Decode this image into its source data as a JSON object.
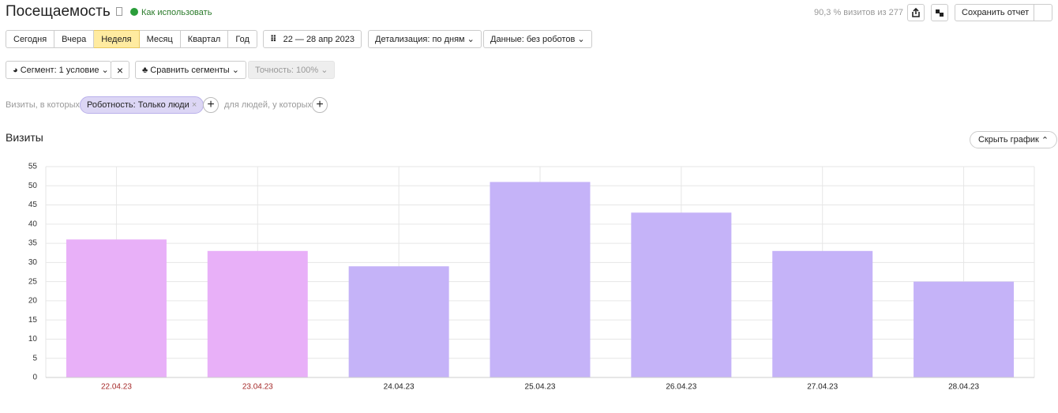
{
  "header": {
    "title": "Посещаемость",
    "help": "Как использовать",
    "sampling": "90,3 % визитов из 277",
    "save": "Сохранить отчет"
  },
  "periods": [
    "Сегодня",
    "Вчера",
    "Неделя",
    "Месяц",
    "Квартал",
    "Год"
  ],
  "date_range": "22 — 28 апр 2023",
  "detail": "Детализация: по дням",
  "data_filter": "Данные: без роботов",
  "segment": "Сегмент: 1 условие",
  "compare": "Сравнить сегменты",
  "accuracy": "Точность: 100%",
  "filter": {
    "prefix": "Визиты, в которых",
    "tag": "Роботность: Только люди",
    "people": "для людей, у которых"
  },
  "hide_chart": "Скрыть график",
  "chart_data": {
    "type": "bar",
    "title": "Визиты",
    "categories": [
      "22.04.23",
      "23.04.23",
      "24.04.23",
      "25.04.23",
      "26.04.23",
      "27.04.23",
      "28.04.23"
    ],
    "values": [
      36,
      33,
      29,
      51,
      43,
      33,
      25
    ],
    "colors": [
      "#e8b0f8",
      "#e8b0f8",
      "#c5b3f8",
      "#c5b3f8",
      "#c5b3f8",
      "#c5b3f8",
      "#c5b3f8"
    ],
    "label_colors": [
      "#a52a2a",
      "#a52a2a",
      "#222222",
      "#222222",
      "#222222",
      "#222222",
      "#222222"
    ],
    "ylim": [
      0,
      55
    ],
    "yticks": [
      0,
      5,
      10,
      15,
      20,
      25,
      30,
      35,
      40,
      45,
      50,
      55
    ],
    "grid": true
  }
}
